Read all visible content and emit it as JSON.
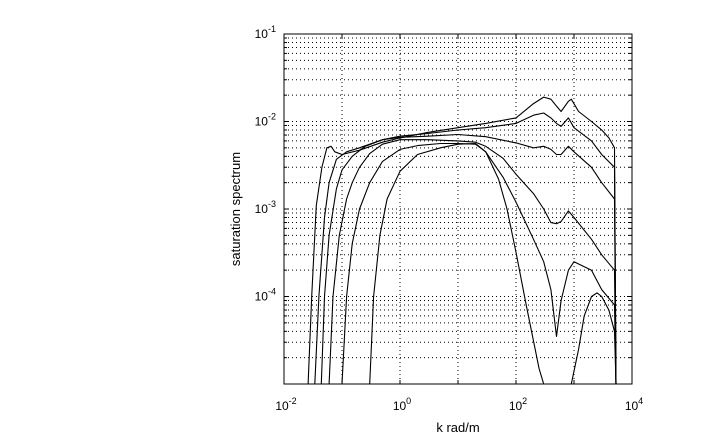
{
  "chart_data": {
    "type": "line",
    "title": "",
    "xlabel": "k rad/m",
    "ylabel": "saturation spectrum",
    "xscale": "log",
    "yscale": "log",
    "xlim": [
      0.01,
      10000
    ],
    "ylim": [
      1e-05,
      0.1
    ],
    "grid": true,
    "legend": "none",
    "x_ticks": [
      {
        "base": "10",
        "exp": "-2"
      },
      {
        "base": "10",
        "exp": "0"
      },
      {
        "base": "10",
        "exp": "2"
      },
      {
        "base": "10",
        "exp": "4"
      }
    ],
    "y_ticks": [
      {
        "base": "10",
        "exp": "-1",
        "value": 0.1
      },
      {
        "base": "10",
        "exp": "-2",
        "value": 0.01
      },
      {
        "base": "10",
        "exp": "-3",
        "value": 0.001
      },
      {
        "base": "10",
        "exp": "-4",
        "value": 0.0001
      }
    ],
    "line_color": "#000000",
    "series": [
      {
        "points": [
          [
            0.026,
            1e-05
          ],
          [
            0.03,
            0.0001
          ],
          [
            0.036,
            0.0011
          ],
          [
            0.045,
            0.003
          ],
          [
            0.055,
            0.005
          ],
          [
            0.065,
            0.0052
          ],
          [
            0.075,
            0.0045
          ],
          [
            0.1,
            0.0042
          ],
          [
            0.2,
            0.0047
          ],
          [
            0.5,
            0.0058
          ],
          [
            1,
            0.0065
          ],
          [
            3,
            0.0075
          ],
          [
            10,
            0.0085
          ],
          [
            30,
            0.0095
          ],
          [
            100,
            0.011
          ],
          [
            200,
            0.016
          ],
          [
            300,
            0.019
          ],
          [
            400,
            0.018
          ],
          [
            500,
            0.015
          ],
          [
            600,
            0.013
          ],
          [
            800,
            0.017
          ],
          [
            900,
            0.018
          ],
          [
            1200,
            0.013
          ],
          [
            2000,
            0.01
          ],
          [
            3000,
            0.008
          ],
          [
            4000,
            0.0065
          ],
          [
            5000,
            0.005
          ],
          [
            5300,
            1e-05
          ]
        ]
      },
      {
        "points": [
          [
            0.034,
            1e-05
          ],
          [
            0.04,
            0.0001
          ],
          [
            0.05,
            0.0008
          ],
          [
            0.06,
            0.002
          ],
          [
            0.08,
            0.0037
          ],
          [
            0.12,
            0.0045
          ],
          [
            0.2,
            0.005
          ],
          [
            0.5,
            0.0062
          ],
          [
            1,
            0.0068
          ],
          [
            3,
            0.0073
          ],
          [
            10,
            0.008
          ],
          [
            30,
            0.0085
          ],
          [
            100,
            0.0095
          ],
          [
            200,
            0.0118
          ],
          [
            300,
            0.0125
          ],
          [
            400,
            0.011
          ],
          [
            500,
            0.0095
          ],
          [
            600,
            0.0088
          ],
          [
            800,
            0.011
          ],
          [
            1000,
            0.0085
          ],
          [
            2000,
            0.006
          ],
          [
            3000,
            0.0042
          ],
          [
            5000,
            0.003
          ],
          [
            5300,
            1e-05
          ]
        ]
      },
      {
        "points": [
          [
            0.044,
            1e-05
          ],
          [
            0.05,
            0.0001
          ],
          [
            0.06,
            0.0005
          ],
          [
            0.08,
            0.0017
          ],
          [
            0.1,
            0.0028
          ],
          [
            0.15,
            0.004
          ],
          [
            0.25,
            0.0052
          ],
          [
            0.5,
            0.0062
          ],
          [
            1,
            0.0066
          ],
          [
            3,
            0.0068
          ],
          [
            10,
            0.0071
          ],
          [
            30,
            0.0067
          ],
          [
            100,
            0.0057
          ],
          [
            200,
            0.005
          ],
          [
            300,
            0.0052
          ],
          [
            400,
            0.0048
          ],
          [
            500,
            0.0042
          ],
          [
            600,
            0.0042
          ],
          [
            800,
            0.0052
          ],
          [
            1000,
            0.0045
          ],
          [
            2000,
            0.003
          ],
          [
            3000,
            0.002
          ],
          [
            5000,
            0.0013
          ],
          [
            5300,
            1e-05
          ]
        ]
      },
      {
        "points": [
          [
            0.06,
            1e-05
          ],
          [
            0.07,
            0.0001
          ],
          [
            0.09,
            0.0005
          ],
          [
            0.12,
            0.0013
          ],
          [
            0.15,
            0.002
          ],
          [
            0.2,
            0.003
          ],
          [
            0.3,
            0.0043
          ],
          [
            0.5,
            0.0055
          ],
          [
            1,
            0.0062
          ],
          [
            3,
            0.0062
          ],
          [
            10,
            0.006
          ],
          [
            20,
            0.0058
          ],
          [
            30,
            0.0052
          ],
          [
            60,
            0.0038
          ],
          [
            100,
            0.0025
          ],
          [
            200,
            0.0015
          ],
          [
            300,
            0.001
          ],
          [
            400,
            0.0007
          ],
          [
            500,
            0.00068
          ],
          [
            600,
            0.00072
          ],
          [
            800,
            0.00095
          ],
          [
            1000,
            0.0008
          ],
          [
            2000,
            0.00045
          ],
          [
            3000,
            0.0003
          ],
          [
            5000,
            0.0002
          ],
          [
            5300,
            1e-05
          ]
        ]
      },
      {
        "points": [
          [
            0.1,
            1e-05
          ],
          [
            0.12,
            0.0001
          ],
          [
            0.15,
            0.0004
          ],
          [
            0.2,
            0.001
          ],
          [
            0.3,
            0.002
          ],
          [
            0.5,
            0.0035
          ],
          [
            1,
            0.0048
          ],
          [
            2,
            0.0053
          ],
          [
            5,
            0.0056
          ],
          [
            10,
            0.0056
          ],
          [
            20,
            0.0055
          ],
          [
            30,
            0.0045
          ],
          [
            60,
            0.0023
          ],
          [
            100,
            0.0012
          ],
          [
            200,
            0.00045
          ],
          [
            300,
            0.00025
          ],
          [
            400,
            0.00012
          ],
          [
            500,
            3.5e-05
          ],
          [
            600,
            9e-05
          ],
          [
            800,
            0.0002
          ],
          [
            1000,
            0.00025
          ],
          [
            2000,
            0.0002
          ],
          [
            3000,
            0.00012
          ],
          [
            5000,
            8e-05
          ],
          [
            5300,
            1e-05
          ]
        ]
      },
      {
        "points": [
          [
            0.3,
            1e-05
          ],
          [
            0.35,
            0.0001
          ],
          [
            0.45,
            0.0005
          ],
          [
            0.6,
            0.0013
          ],
          [
            1,
            0.0027
          ],
          [
            2,
            0.0042
          ],
          [
            5,
            0.005
          ],
          [
            10,
            0.0055
          ],
          [
            20,
            0.0056
          ],
          [
            30,
            0.0045
          ],
          [
            50,
            0.0022
          ],
          [
            70,
            0.001
          ],
          [
            100,
            0.00032
          ],
          [
            150,
            8e-05
          ],
          [
            250,
            1.5e-05
          ],
          [
            300,
            1e-05
          ]
        ]
      },
      {
        "points": [
          [
            900,
            1e-05
          ],
          [
            1200,
            2.5e-05
          ],
          [
            1500,
            6e-05
          ],
          [
            2000,
            0.0001
          ],
          [
            2500,
            0.00011
          ],
          [
            3000,
            0.0001
          ],
          [
            4000,
            7e-05
          ],
          [
            5000,
            4e-05
          ],
          [
            5300,
            1e-05
          ]
        ]
      }
    ]
  }
}
